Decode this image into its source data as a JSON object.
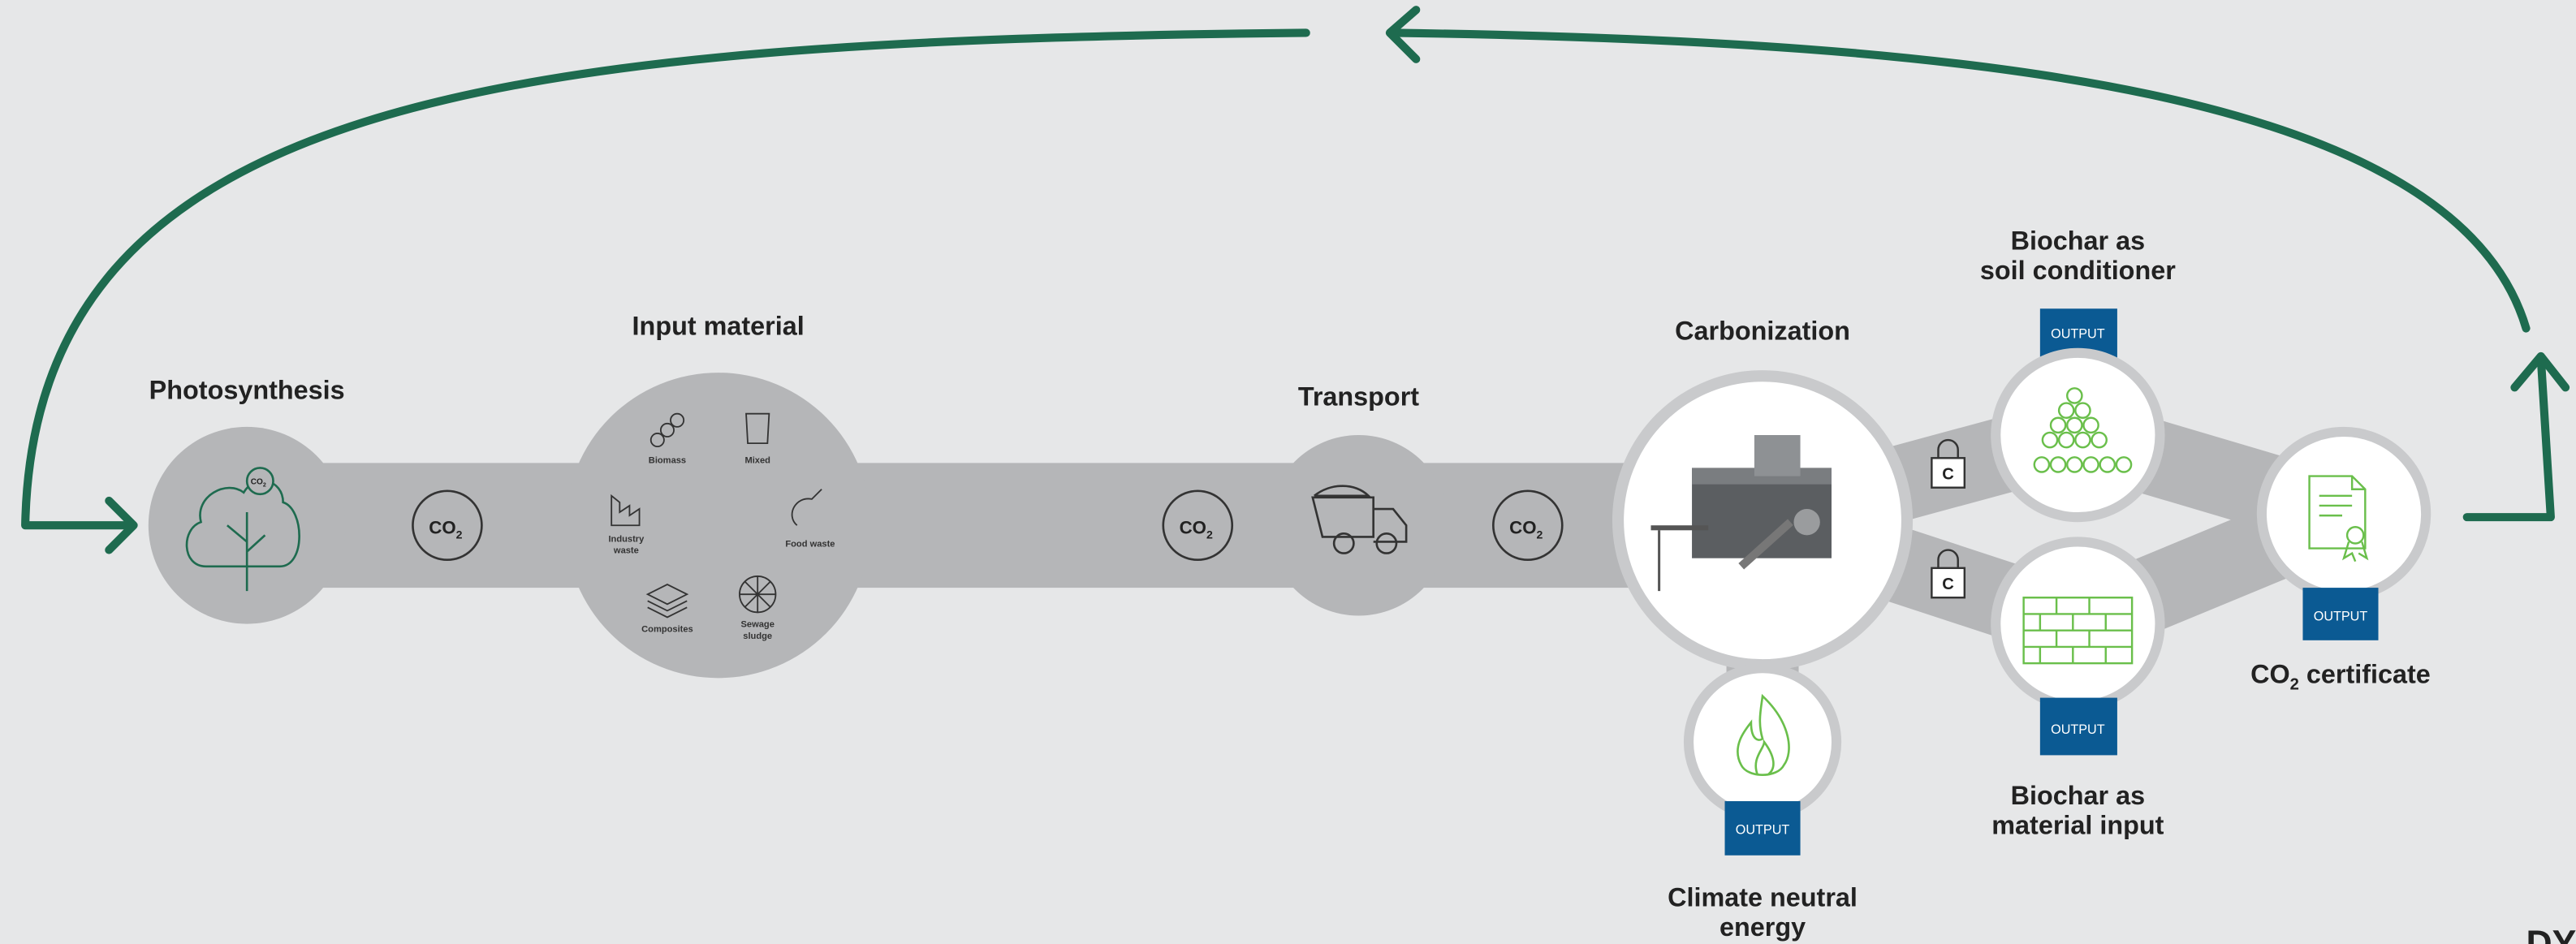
{
  "nodes": {
    "photosynthesis": {
      "label": "Photosynthesis",
      "co2": {
        "text": "CO",
        "sub": "2"
      }
    },
    "input_material": {
      "label": "Input material",
      "items": [
        [
          "Biomass"
        ],
        [
          "Mixed"
        ],
        [
          "Industry",
          "waste"
        ],
        [
          "Food waste"
        ],
        [
          "Composites"
        ],
        [
          "Sewage",
          "sludge"
        ]
      ]
    },
    "transport": {
      "label": "Transport"
    },
    "carbonization": {
      "label": "Carbonization"
    },
    "soil_conditioner": {
      "label": [
        "Biochar as",
        "soil conditioner"
      ],
      "badge": "OUTPUT",
      "lock": "C"
    },
    "material_input": {
      "label": [
        "Biochar as",
        "material input"
      ],
      "badge": "OUTPUT",
      "lock": "C"
    },
    "energy": {
      "label": [
        "Climate neutral",
        "energy"
      ],
      "badge": "OUTPUT"
    },
    "certificate": {
      "label": {
        "text": "CO",
        "sub": "2",
        "rest": " certificate"
      },
      "badge": "OUTPUT"
    }
  },
  "co2_badges": [
    {
      "text": "CO",
      "sub": "2"
    },
    {
      "text": "CO",
      "sub": "2"
    },
    {
      "text": "CO",
      "sub": "2"
    }
  ],
  "logo": "DY"
}
